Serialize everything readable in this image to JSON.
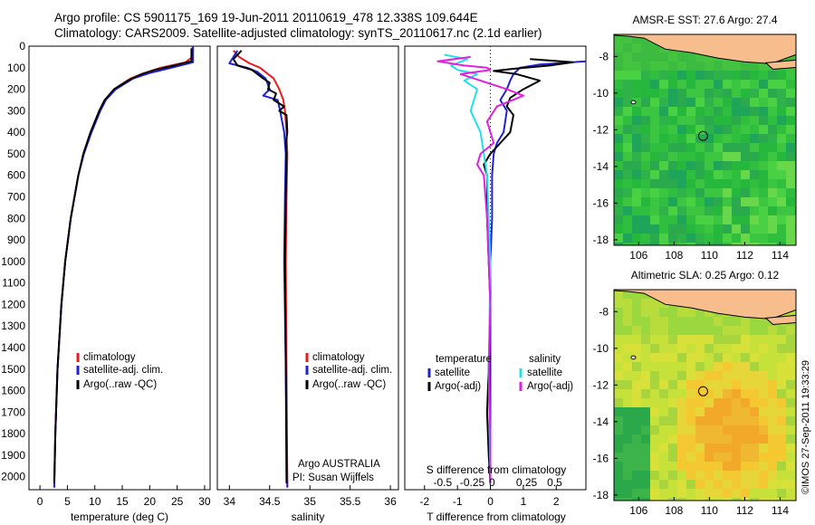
{
  "header": {
    "line1": "Argo profile: CS 5901175_169 19-Jun-2011 20110619_478 12.338S 109.644E",
    "line2": "Climatology: CARS2009. Satellite-adjusted climatology: synTS_20110617.nc (2.1d earlier)"
  },
  "colors": {
    "climatology": "#e81c1c",
    "satellite": "#1f22d4",
    "argo": "#000000",
    "sat_salt": "#22e0e6",
    "argo_salt": "#e020e0",
    "land": "#f7bd8c"
  },
  "depth_axis": {
    "ticks": [
      0,
      100,
      200,
      300,
      400,
      500,
      600,
      700,
      800,
      900,
      1000,
      1100,
      1200,
      1300,
      1400,
      1500,
      1600,
      1700,
      1800,
      1900,
      2000
    ]
  },
  "chart_data": [
    {
      "type": "line",
      "xlabel": "temperature (deg C)",
      "xlim": [
        -2,
        31
      ],
      "ylim": [
        2060,
        0
      ],
      "xticks": [
        0,
        5,
        10,
        15,
        20,
        25,
        30
      ],
      "legend": {
        "placement": "bottom-center",
        "entries": [
          "climatology",
          "satellite-adj. clim.",
          "Argo(..raw -QC)"
        ]
      },
      "series": [
        {
          "name": "climatology",
          "color": "#e81c1c",
          "depth": [
            0,
            50,
            75,
            100,
            125,
            150,
            200,
            250,
            300,
            400,
            500,
            600,
            800,
            1000,
            1200,
            1500,
            1800,
            2050
          ],
          "values": [
            27.8,
            27.8,
            26.5,
            22,
            19,
            16.5,
            13.5,
            11.8,
            10.8,
            9.3,
            8.0,
            7.0,
            5.6,
            4.6,
            3.9,
            3.2,
            2.8,
            2.6
          ]
        },
        {
          "name": "satellite-adj. clim.",
          "color": "#1f22d4",
          "depth": [
            0,
            50,
            75,
            100,
            125,
            150,
            200,
            250,
            300,
            400,
            500,
            600,
            800,
            1000,
            1200,
            1500,
            1800,
            2050
          ],
          "values": [
            27.9,
            27.9,
            27.9,
            24,
            20,
            17,
            13.8,
            12,
            11,
            9.4,
            8.0,
            7.0,
            5.6,
            4.6,
            3.9,
            3.2,
            2.8,
            2.6
          ]
        },
        {
          "name": "Argo(..raw -QC)",
          "color": "#000000",
          "depth": [
            10,
            50,
            70,
            90,
            110,
            130,
            160,
            200,
            250,
            300,
            400,
            500,
            600,
            800,
            1000,
            1200,
            1500,
            1800,
            2030
          ],
          "values": [
            27.6,
            27.6,
            27.6,
            24.5,
            21,
            18.5,
            16,
            13.5,
            11.8,
            10.8,
            9.2,
            7.9,
            7.0,
            5.6,
            4.6,
            3.9,
            3.2,
            2.8,
            2.6
          ]
        }
      ]
    },
    {
      "type": "line",
      "xlabel": "salinity",
      "xlim": [
        33.85,
        36.1
      ],
      "ylim": [
        2060,
        0
      ],
      "xticks": [
        34,
        34.5,
        35,
        35.5,
        36
      ],
      "legend": {
        "placement": "bottom-center",
        "entries": [
          "climatology",
          "satellite-adj. clim.",
          "Argo(..raw -QC)"
        ]
      },
      "annotations": [
        "Argo AUSTRALIA",
        "PI: Susan Wijffels"
      ],
      "series": [
        {
          "name": "climatology",
          "color": "#e81c1c",
          "depth": [
            20,
            50,
            80,
            100,
            150,
            200,
            250,
            300,
            400,
            500,
            700,
            1000,
            1500,
            2050
          ],
          "values": [
            34.05,
            34.12,
            34.25,
            34.38,
            34.55,
            34.62,
            34.67,
            34.69,
            34.71,
            34.72,
            34.71,
            34.7,
            34.71,
            34.72
          ]
        },
        {
          "name": "satellite-adj. clim.",
          "color": "#1f22d4",
          "depth": [
            20,
            50,
            80,
            100,
            120,
            150,
            200,
            230,
            250,
            300,
            400,
            500,
            700,
            1000,
            1500,
            2050
          ],
          "values": [
            34.1,
            34.05,
            34.0,
            34.22,
            34.35,
            34.45,
            34.5,
            34.42,
            34.6,
            34.63,
            34.68,
            34.7,
            34.69,
            34.68,
            34.7,
            34.72
          ]
        },
        {
          "name": "Argo(..raw -QC)",
          "color": "#000000",
          "depth": [
            20,
            60,
            90,
            110,
            130,
            150,
            170,
            200,
            220,
            250,
            280,
            300,
            320,
            400,
            450,
            500,
            700,
            1000,
            1500,
            2030
          ],
          "values": [
            34.15,
            34.05,
            34.1,
            34.28,
            34.35,
            34.42,
            34.5,
            34.48,
            34.58,
            34.55,
            34.68,
            34.62,
            34.71,
            34.72,
            34.7,
            34.71,
            34.7,
            34.69,
            34.7,
            34.71
          ]
        }
      ]
    },
    {
      "type": "line",
      "xlabel": "T difference from climatology",
      "xlabel2": "S difference from climatology",
      "xlim": [
        -2.6,
        2.9
      ],
      "ylim": [
        2060,
        0
      ],
      "xticks": [
        -2,
        -1,
        0,
        1,
        2
      ],
      "s_ticks": [
        "-0.5",
        "-0.25",
        "0",
        "0.25",
        "0.5"
      ],
      "legend": {
        "placement": "bottom-center",
        "temperature_title": "temperature",
        "salinity_title": "salinity",
        "temperature_entries": [
          "satellite",
          "Argo(-adj)"
        ],
        "salinity_entries": [
          "satellite",
          "Argo(-adj)"
        ]
      },
      "series": [
        {
          "name": "temperature satellite",
          "color": "#1f22d4",
          "depth": [
            70,
            85,
            100,
            130,
            160,
            200,
            250,
            300,
            400,
            450,
            500,
            600,
            800,
            1000,
            1500,
            2030
          ],
          "values": [
            2.9,
            1.5,
            0.9,
            0.7,
            0.6,
            0.5,
            0.3,
            0.5,
            0.4,
            0.2,
            0.1,
            0.05,
            0.05,
            0.0,
            0.0,
            0.0
          ]
        },
        {
          "name": "temperature Argo(-adj)",
          "color": "#000000",
          "depth": [
            60,
            75,
            90,
            105,
            115,
            130,
            160,
            200,
            240,
            280,
            320,
            400,
            450,
            500,
            550,
            600,
            800,
            1000,
            1200,
            1500,
            1700,
            1900,
            2030
          ],
          "values": [
            1.2,
            2.5,
            1.8,
            0.7,
            0.1,
            0.8,
            1.5,
            1.0,
            0.6,
            0.5,
            0.7,
            0.6,
            0.3,
            0.0,
            -0.2,
            -0.1,
            -0.1,
            -0.05,
            0.0,
            -0.05,
            -0.1,
            -0.05,
            0.0
          ]
        },
        {
          "name": "salinity satellite",
          "color": "#22e0e6",
          "depth": [
            40,
            60,
            90,
            110,
            130,
            160,
            200,
            250,
            300,
            400,
            500,
            600,
            800,
            1000,
            1500,
            2030
          ],
          "values": [
            -1.4,
            -0.7,
            -1.2,
            -1.0,
            -0.4,
            -0.8,
            -0.4,
            -0.5,
            -0.6,
            -0.3,
            -0.2,
            -0.1,
            -0.05,
            0.0,
            -0.05,
            0.0
          ]
        },
        {
          "name": "salinity Argo(-adj)",
          "color": "#e020e0",
          "depth": [
            50,
            70,
            90,
            100,
            110,
            130,
            160,
            200,
            230,
            280,
            350,
            450,
            500,
            550,
            600,
            800,
            1000,
            1200,
            1500,
            1800,
            2030
          ],
          "values": [
            -0.6,
            -1.6,
            -0.8,
            -0.1,
            0.0,
            -0.9,
            -0.3,
            0.5,
            1.0,
            0.2,
            -0.1,
            0.1,
            -0.3,
            -0.4,
            -0.2,
            -0.1,
            -0.05,
            0.0,
            -0.05,
            0.0,
            0.0
          ]
        }
      ]
    },
    {
      "type": "heatmap",
      "title": "AMSR-E SST: 27.6 Argo: 27.4",
      "xlim": [
        104.6,
        114.9
      ],
      "ylim": [
        -18.3,
        -6.8
      ],
      "xticks": [
        106,
        108,
        110,
        112,
        114
      ],
      "yticks": [
        -8,
        -10,
        -12,
        -14,
        -16,
        -18
      ],
      "argo_position": [
        109.644,
        -12.338
      ]
    },
    {
      "type": "heatmap",
      "title": "Altimetric SLA: 0.25 Argo: 0.12",
      "xlim": [
        104.6,
        114.9
      ],
      "ylim": [
        -18.3,
        -6.8
      ],
      "xticks": [
        106,
        108,
        110,
        112,
        114
      ],
      "yticks": [
        -8,
        -10,
        -12,
        -14,
        -16,
        -18
      ],
      "argo_position": [
        109.644,
        -12.338
      ]
    }
  ],
  "footer": {
    "stamp": "©IMOS 27-Sep-2011 19:33:29"
  }
}
